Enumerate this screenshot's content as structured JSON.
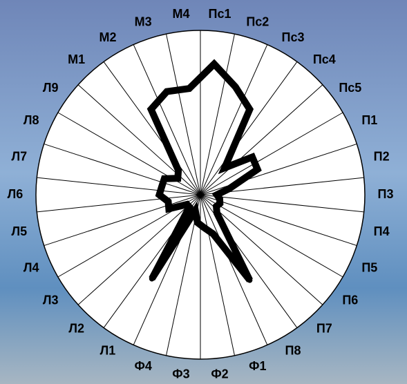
{
  "chart_data": {
    "type": "radar",
    "categories": [
      "Пс1",
      "Пс2",
      "Пс3",
      "Пс4",
      "Пс5",
      "П1",
      "П2",
      "П3",
      "П4",
      "П5",
      "П6",
      "П7",
      "П8",
      "Ф1",
      "Ф2",
      "Ф3",
      "Ф4",
      "Л1",
      "Л2",
      "Л3",
      "Л4",
      "Л5",
      "Л6",
      "Л7",
      "Л8",
      "Л9",
      "М1",
      "М2",
      "М3",
      "М4"
    ],
    "values": [
      0.8,
      0.69,
      0.6,
      0.22,
      0.39,
      0.38,
      0.18,
      0.1,
      0.12,
      0.13,
      0.12,
      0.15,
      0.6,
      0.25,
      0.2,
      0.17,
      0.1,
      0.59,
      0.1,
      0.1,
      0.21,
      0.2,
      0.25,
      0.24,
      0.24,
      0.17,
      0.2,
      0.6,
      0.66,
      0.65
    ],
    "color": "#000000",
    "rlim": [
      0,
      1
    ]
  }
}
